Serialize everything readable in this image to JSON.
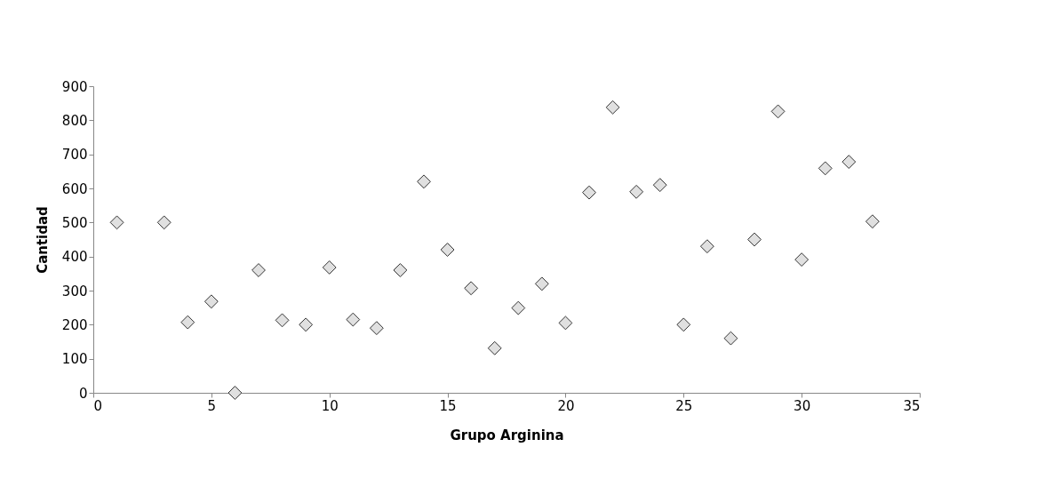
{
  "chart_data": {
    "type": "scatter",
    "xlabel": "Grupo Arginina",
    "ylabel": "Cantidad",
    "x": [
      1,
      3,
      4,
      5,
      6,
      7,
      8,
      9,
      10,
      11,
      12,
      13,
      14,
      15,
      16,
      17,
      18,
      19,
      20,
      21,
      22,
      23,
      24,
      25,
      26,
      27,
      28,
      29,
      30,
      31,
      32,
      33
    ],
    "series": [
      {
        "color": "#e0e0e0",
        "values": [
          500,
          500,
          207,
          268,
          0,
          360,
          213,
          200,
          368,
          215,
          190,
          360,
          620,
          420,
          307,
          131,
          249,
          320,
          205,
          588,
          838,
          590,
          610,
          200,
          430,
          160,
          450,
          826,
          391,
          659,
          678,
          503
        ]
      }
    ],
    "xlim": [
      0,
      35
    ],
    "xticks": [
      0,
      5,
      10,
      15,
      20,
      25,
      30,
      35
    ],
    "ylim": [
      0,
      900
    ],
    "yticks": [
      0,
      100,
      200,
      300,
      400,
      500,
      600,
      700,
      800,
      900
    ],
    "marker": "diamond",
    "grid": false,
    "legend": false
  }
}
